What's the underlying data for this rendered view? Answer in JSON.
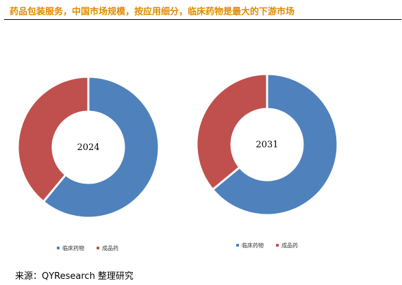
{
  "title": "药品包装服务，中国市场规模，按应用细分，临床药物是最大的下游市场",
  "source": "来源：QYResearch 整理研究",
  "colors": {
    "title": "#e08a00",
    "clinical": "#4f81bd",
    "finished": "#c0504d"
  },
  "chart_data": [
    {
      "type": "pie",
      "variant": "donut",
      "center_label": "2024",
      "categories": [
        "临床药物",
        "成品药"
      ],
      "values": [
        61,
        39
      ],
      "colors": [
        "#4f81bd",
        "#c0504d"
      ],
      "legend": [
        "临床药物",
        "成品药"
      ],
      "legend_position": "bottom"
    },
    {
      "type": "pie",
      "variant": "donut",
      "center_label": "2031",
      "categories": [
        "临床药物",
        "成品药"
      ],
      "values": [
        64,
        36
      ],
      "colors": [
        "#4f81bd",
        "#c0504d"
      ],
      "legend": [
        "临床药物",
        "成品药"
      ],
      "legend_position": "bottom"
    }
  ]
}
